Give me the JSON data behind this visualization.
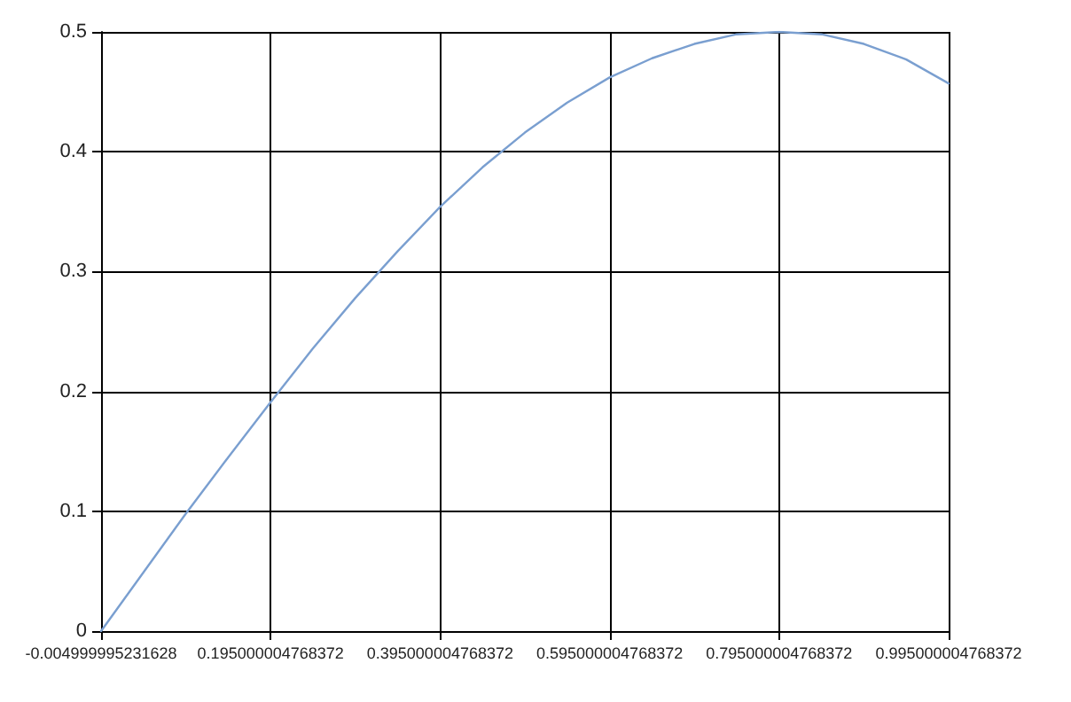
{
  "chart_data": {
    "type": "line",
    "x": [
      -0.004999995231628,
      0.045,
      0.095,
      0.145,
      0.195,
      0.245,
      0.295,
      0.345,
      0.395,
      0.445,
      0.495,
      0.545,
      0.595,
      0.645,
      0.695,
      0.745,
      0.795,
      0.845,
      0.895,
      0.945,
      0.995000004768372
    ],
    "series": [
      {
        "color": "#7a9fd0",
        "values": [
          0,
          0.049,
          0.098,
          0.145,
          0.191,
          0.236,
          0.278,
          0.317,
          0.354,
          0.387,
          0.416,
          0.441,
          0.462,
          0.478,
          0.49,
          0.498,
          0.5,
          0.498,
          0.49,
          0.477,
          0.457
        ]
      }
    ],
    "xlim": [
      -0.004999995231628,
      0.995000004768372
    ],
    "xticks": [
      -0.004999995231628,
      0.195000004768372,
      0.395000004768372,
      0.595000004768372,
      0.795000004768372,
      0.995000004768372
    ],
    "ylim": [
      0,
      0.5
    ],
    "yticks": [
      0,
      0.1,
      0.2,
      0.3,
      0.4,
      0.5
    ],
    "grid": true,
    "marker": "none",
    "line_style": "solid"
  }
}
